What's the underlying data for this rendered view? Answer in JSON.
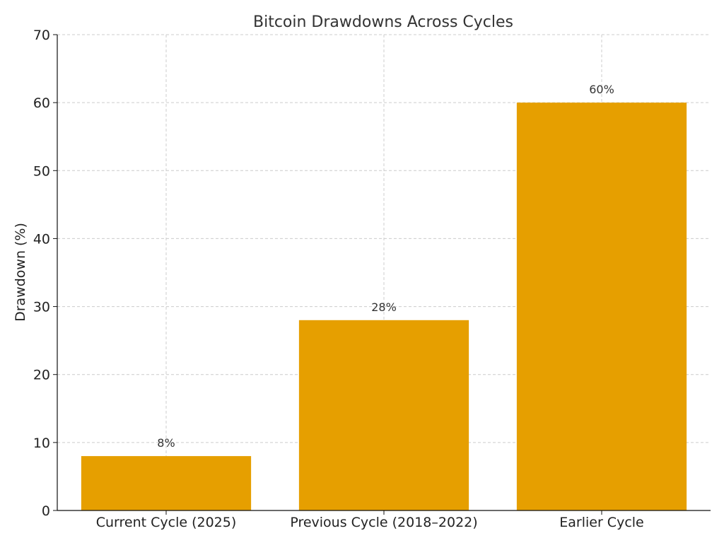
{
  "chart_data": {
    "type": "bar",
    "title": "Bitcoin Drawdowns Across Cycles",
    "xlabel": "",
    "ylabel": "Drawdown (%)",
    "categories": [
      "Current Cycle (2025)",
      "Previous Cycle (2018–2022)",
      "Earlier Cycle"
    ],
    "values": [
      8,
      28,
      60
    ],
    "data_labels": [
      "8%",
      "28%",
      "60%"
    ],
    "ylim": [
      0,
      70
    ],
    "yticks": [
      0,
      10,
      20,
      30,
      40,
      50,
      60,
      70
    ],
    "grid": true,
    "bar_color": "#e69f00"
  }
}
